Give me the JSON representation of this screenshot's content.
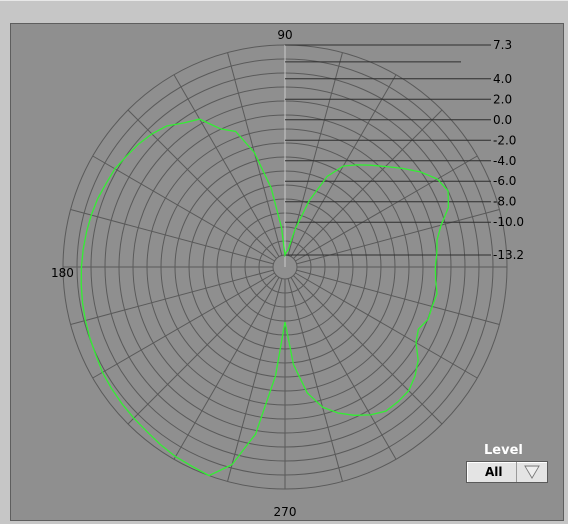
{
  "angle_labels": [
    "90",
    "180",
    "270"
  ],
  "scale_labels": [
    "7.3",
    "4.0",
    "2.0",
    "0.0",
    "-2.0",
    "-4.0",
    "-6.0",
    "-8.0",
    "-10.0",
    "-13.2"
  ],
  "level": {
    "label": "Level",
    "value": "All",
    "arrow_icon": "triangle-down-icon"
  },
  "colors": {
    "plot_background": "#8f8f8f",
    "grid": "#5a5a5a",
    "trace": "#33ee33"
  },
  "chart_data": {
    "type": "polar-line",
    "radial_range": [
      -13.2,
      7.3
    ],
    "angle_labels": [
      "90",
      "180",
      "270"
    ],
    "radial_tick_labels": [
      "7.3",
      "4.0",
      "2.0",
      "0.0",
      "-2.0",
      "-4.0",
      "-6.0",
      "-8.0",
      "-10.0",
      "-13.2"
    ],
    "series": [
      {
        "angles_deg": [
          0,
          5,
          10,
          15,
          20,
          25,
          30,
          35,
          40,
          45,
          50,
          55,
          60,
          65,
          70,
          75,
          80,
          85,
          90,
          95,
          100,
          105,
          110,
          115,
          120,
          125,
          130,
          135,
          140,
          145,
          150,
          155,
          160,
          165,
          170,
          175,
          180,
          185,
          190,
          195,
          200,
          205,
          210,
          215,
          220,
          225,
          230,
          235,
          240,
          245,
          250,
          255,
          260,
          265,
          270,
          275,
          280,
          285,
          290,
          295,
          300,
          305,
          310,
          315,
          320,
          325,
          330,
          335,
          340,
          345,
          350,
          355,
          360
        ],
        "values": [
          0.3,
          0.5,
          0.7,
          1.4,
          2.6,
          3.2,
          2.8,
          1.8,
          0.6,
          -0.5,
          -1.4,
          -2.2,
          -3.0,
          -4.6,
          -7.5,
          -10.5,
          -12.7,
          -12.9,
          -13.2,
          -10.5,
          -6.5,
          -2.8,
          -0.3,
          0.5,
          2.3,
          2.8,
          3.6,
          4.0,
          4.3,
          4.5,
          4.8,
          4.9,
          5.1,
          5.2,
          5.3,
          5.4,
          5.5,
          5.6,
          5.7,
          5.8,
          5.9,
          6.0,
          6.2,
          6.3,
          6.4,
          6.5,
          6.6,
          6.8,
          7.0,
          7.1,
          7.3,
          5.6,
          2.2,
          -3.7,
          -9.0,
          -4.8,
          -1.9,
          -0.2,
          0.8,
          1.6,
          2.3,
          2.8,
          2.8,
          2.7,
          2.2,
          1.5,
          0.4,
          0.0,
          0.5,
          0.5,
          0.7,
          0.4,
          0.3
        ]
      }
    ]
  }
}
